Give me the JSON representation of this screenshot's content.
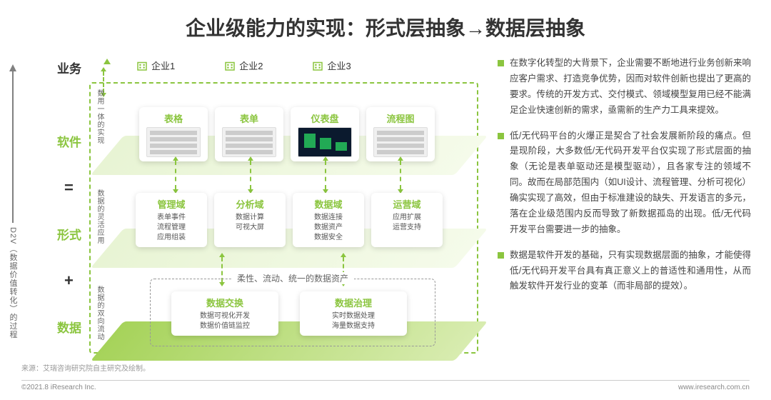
{
  "title": "企业级能力的实现：形式层抽象→数据层抽象",
  "axis_label": "D2V（数据价值转化）的过程",
  "row_labels": {
    "biz": "业务",
    "software": "软件",
    "form": "形式",
    "data": "数据"
  },
  "operators": {
    "eq": "=",
    "plus": "+"
  },
  "enterprises": [
    {
      "label": "企业1"
    },
    {
      "label": "企业2"
    },
    {
      "label": "企业3"
    }
  ],
  "side_labels": {
    "impl": "数用一体的实现",
    "flex": "数据的灵活应用",
    "flow": "数据的双向流动"
  },
  "software_cards": [
    {
      "title": "表格",
      "thumb": "light"
    },
    {
      "title": "表单",
      "thumb": "light"
    },
    {
      "title": "仪表盘",
      "thumb": "dark"
    },
    {
      "title": "流程图",
      "thumb": "light"
    }
  ],
  "form_cards": [
    {
      "title": "管理域",
      "body": "表单事件\n流程管理\n应用组装"
    },
    {
      "title": "分析域",
      "body": "数据计算\n可视大屏"
    },
    {
      "title": "数据域",
      "body": "数据连接\n数据资产\n数据安全"
    },
    {
      "title": "运营域",
      "body": "应用扩展\n运营支持"
    }
  ],
  "data_box_title": "柔性、流动、统一的数据资产",
  "data_cards": [
    {
      "title": "数据交换",
      "body": "数据可视化开发\n数据价值链监控"
    },
    {
      "title": "数据治理",
      "body": "实时数据处理\n海量数据支持"
    }
  ],
  "bullets": [
    "在数字化转型的大背景下，企业需要不断地进行业务创新来响应客户需求、打造竞争优势，因而对软件创新也提出了更高的要求。传统的开发方式、交付模式、领域模型复用已经不能满足企业快速创新的需求，亟需新的生产力工具来提效。",
    "低/无代码平台的火爆正是契合了社会发展新阶段的痛点。但是现阶段，大多数低/无代码开发平台仅实现了形式层面的抽象（无论是表单驱动还是模型驱动），且各家专注的领域不同。故而在局部范围内（如UI设计、流程管理、分析可视化）确实实现了高效，但由于标准建设的缺失、开发语言的多元，落在企业级范围内反而导致了新数据孤岛的出现。低/无代码开发平台需要进一步的抽象。",
    "数据是软件开发的基础，只有实现数据层面的抽象，才能使得低/无代码开发平台具有真正意义上的普适性和通用性，从而触发软件开发行业的变革（而非局部的提效）。"
  ],
  "source": "来源：艾瑞咨询研究院自主研究及绘制。",
  "footer_left": "©2021.8 iResearch Inc.",
  "footer_right": "www.iresearch.com.cn",
  "colors": {
    "accent": "#8bc53f"
  }
}
